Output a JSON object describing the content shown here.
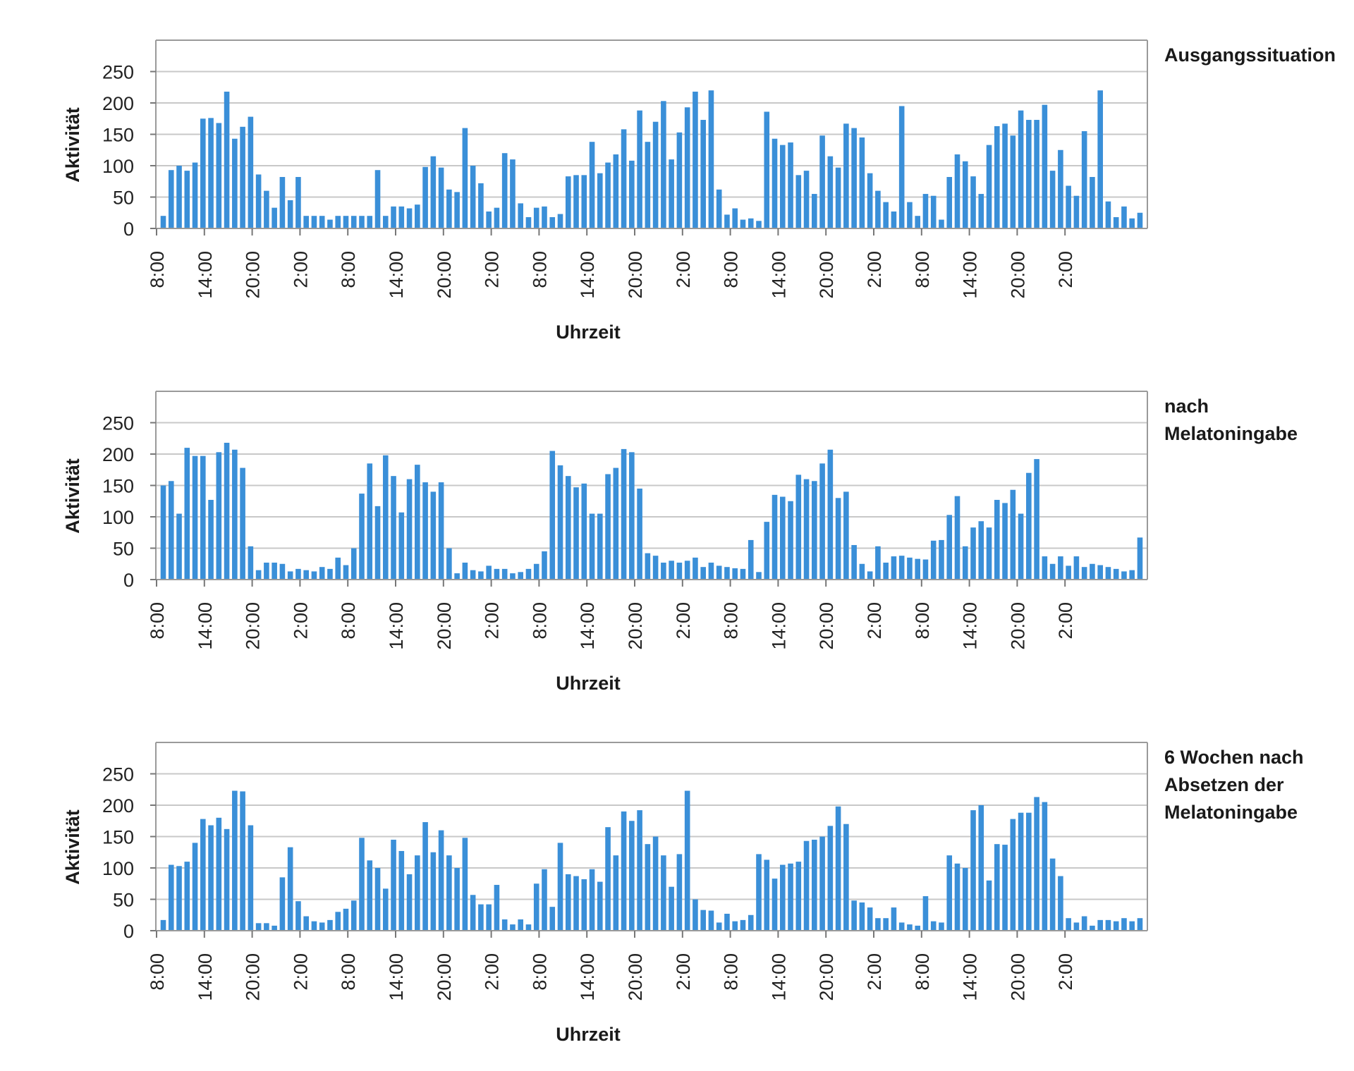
{
  "chart_data": [
    {
      "type": "bar",
      "title": "Ausgangssituation",
      "title_lines": [
        "Ausgangssituation"
      ],
      "xlabel": "Uhrzeit",
      "ylabel": "Aktivität",
      "ylim": [
        0,
        300
      ],
      "yticks": [
        0,
        50,
        100,
        150,
        200,
        250
      ],
      "xticks": [
        "8:00",
        "14:00",
        "20:00",
        "2:00",
        "8:00",
        "14:00",
        "20:00",
        "2:00",
        "8:00",
        "14:00",
        "20:00",
        "2:00",
        "8:00",
        "14:00",
        "20:00",
        "2:00",
        "8:00",
        "14:00",
        "20:00",
        "2:00"
      ],
      "grid": true,
      "color": "#3a8fd8",
      "series": [
        {
          "values": [
            20,
            93,
            100,
            92,
            105,
            175,
            176,
            168,
            218,
            143,
            162,
            178,
            86,
            60,
            33,
            82,
            45,
            82,
            20,
            20,
            20,
            14,
            20,
            20,
            20,
            20,
            20,
            93,
            20,
            35,
            35,
            32,
            38,
            98,
            115,
            97,
            62,
            58,
            160,
            100,
            72,
            27,
            33,
            120,
            110,
            40,
            18,
            33,
            35,
            18,
            23,
            83,
            85,
            85,
            138,
            88,
            105,
            118,
            158,
            108,
            188,
            138,
            170,
            203,
            110,
            153,
            193,
            218,
            173,
            220,
            62,
            22,
            32,
            14,
            16,
            12,
            186,
            143,
            133,
            137,
            85,
            92,
            55,
            148,
            115,
            97,
            167,
            160,
            145,
            88,
            60,
            42,
            27,
            195,
            42,
            20,
            55,
            52,
            14,
            82,
            118,
            107,
            83,
            55,
            133,
            163,
            167,
            148,
            188,
            173,
            173,
            197,
            92,
            125,
            68,
            52,
            155,
            82,
            220,
            43,
            18,
            35,
            16,
            25
          ]
        }
      ]
    },
    {
      "type": "bar",
      "title": "nach Melatoningabe",
      "title_lines": [
        "nach",
        "Melatoningabe"
      ],
      "xlabel": "Uhrzeit",
      "ylabel": "Aktivität",
      "ylim": [
        0,
        300
      ],
      "yticks": [
        0,
        50,
        100,
        150,
        200,
        250
      ],
      "xticks": [
        "8:00",
        "14:00",
        "20:00",
        "2:00",
        "8:00",
        "14:00",
        "20:00",
        "2:00",
        "8:00",
        "14:00",
        "20:00",
        "2:00",
        "8:00",
        "14:00",
        "20:00",
        "2:00",
        "8:00",
        "14:00",
        "20:00",
        "2:00"
      ],
      "grid": true,
      "color": "#3a8fd8",
      "series": [
        {
          "values": [
            150,
            157,
            105,
            210,
            197,
            197,
            127,
            203,
            218,
            207,
            178,
            53,
            15,
            27,
            27,
            25,
            13,
            17,
            15,
            13,
            20,
            17,
            35,
            23,
            50,
            137,
            185,
            117,
            198,
            165,
            107,
            160,
            183,
            155,
            140,
            155,
            50,
            10,
            27,
            15,
            13,
            22,
            17,
            17,
            10,
            12,
            17,
            25,
            45,
            205,
            182,
            165,
            147,
            153,
            105,
            105,
            168,
            178,
            208,
            203,
            145,
            42,
            38,
            27,
            30,
            27,
            30,
            35,
            20,
            27,
            22,
            20,
            18,
            17,
            63,
            12,
            92,
            135,
            132,
            125,
            167,
            160,
            157,
            185,
            207,
            130,
            140,
            55,
            25,
            13,
            53,
            27,
            37,
            38,
            35,
            33,
            32,
            62,
            63,
            103,
            133,
            53,
            83,
            93,
            83,
            127,
            122,
            143,
            105,
            170,
            192,
            37,
            25,
            37,
            22,
            37,
            20,
            25,
            23,
            20,
            17,
            13,
            15,
            67
          ]
        }
      ]
    },
    {
      "type": "bar",
      "title": "6 Wochen nach Absetzen der Melatoningabe",
      "title_lines": [
        "6 Wochen nach",
        "Absetzen der",
        "Melatoningabe"
      ],
      "xlabel": "Uhrzeit",
      "ylabel": "Aktivität",
      "ylim": [
        0,
        300
      ],
      "yticks": [
        0,
        50,
        100,
        150,
        200,
        250
      ],
      "xticks": [
        "8:00",
        "14:00",
        "20:00",
        "2:00",
        "8:00",
        "14:00",
        "20:00",
        "2:00",
        "8:00",
        "14:00",
        "20:00",
        "2:00",
        "8:00",
        "14:00",
        "20:00",
        "2:00",
        "8:00",
        "14:00",
        "20:00",
        "2:00"
      ],
      "grid": true,
      "color": "#3a8fd8",
      "series": [
        {
          "values": [
            17,
            105,
            103,
            110,
            140,
            178,
            168,
            180,
            162,
            223,
            222,
            168,
            12,
            12,
            8,
            85,
            133,
            47,
            23,
            15,
            13,
            17,
            30,
            35,
            48,
            148,
            112,
            100,
            67,
            145,
            127,
            90,
            120,
            173,
            125,
            160,
            120,
            100,
            148,
            57,
            42,
            42,
            73,
            18,
            10,
            18,
            10,
            75,
            98,
            38,
            140,
            90,
            87,
            82,
            98,
            78,
            165,
            120,
            190,
            175,
            192,
            138,
            150,
            120,
            70,
            122,
            223,
            50,
            33,
            32,
            13,
            27,
            15,
            17,
            25,
            122,
            113,
            83,
            105,
            107,
            110,
            143,
            145,
            150,
            167,
            198,
            170,
            48,
            45,
            37,
            20,
            20,
            37,
            13,
            10,
            8,
            55,
            15,
            13,
            120,
            107,
            100,
            192,
            200,
            80,
            138,
            137,
            178,
            188,
            188,
            213,
            205,
            115,
            87,
            20,
            13,
            23,
            8,
            17,
            17,
            15,
            20,
            15,
            20
          ]
        }
      ]
    }
  ]
}
